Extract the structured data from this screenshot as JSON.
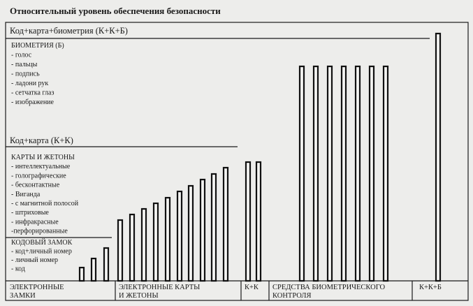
{
  "title": "Относительный уровень обеспечения безопасности",
  "levels": [
    {
      "heading": "Код+карта+биометрия (К+К+Б)",
      "group": "БИОМЕТРИЯ (Б)",
      "items": [
        "- голос",
        "- пальцы",
        "- подпись",
        "- ладони рук",
        "- сетчатка глаз",
        "- изображение"
      ]
    },
    {
      "heading": "Код+карта (К+К)",
      "group": "КАРТЫ И ЖЕТОНЫ",
      "items": [
        "- интеллектуальные",
        "- голографические",
        "- бесконтактные",
        "- Виганда",
        "- с магнитной полосой",
        "- штриховые",
        "- инфракрасные",
        "-перфорированные"
      ]
    },
    {
      "group": "КОДОВЫЙ ЗАМОК",
      "items": [
        "- код+личный номер",
        "- личный номер",
        "- код"
      ]
    }
  ],
  "columns": [
    {
      "lines": [
        "ЭЛЕКТРОННЫЕ",
        "ЗАМКИ"
      ]
    },
    {
      "lines": [
        "ЭЛЕКТРОННЫЕ КАРТЫ",
        "И ЖЕТОНЫ"
      ]
    },
    {
      "lines": [
        "К+К"
      ]
    },
    {
      "lines": [
        "СРЕДСТВА БИОМЕТРИЧЕСКОГО",
        "КОНТРОЛЯ"
      ]
    },
    {
      "lines": [
        "К+К+Б"
      ]
    }
  ]
}
